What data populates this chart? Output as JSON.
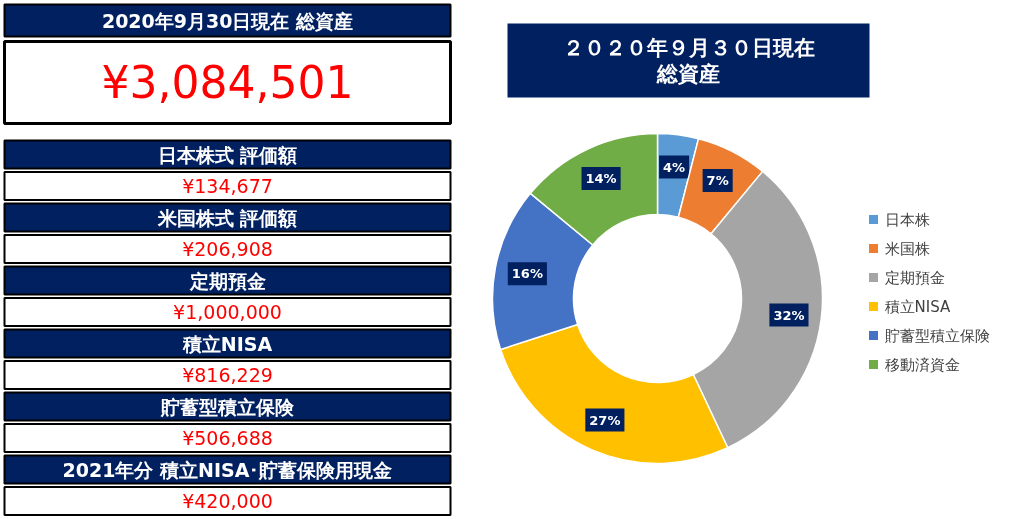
{
  "chart_data": [
    {
      "type": "other",
      "title": "2020年9月30日現在 総資産",
      "annotations": [
        "¥3,084,501",
        "日本株式 評価額",
        "¥134,677",
        "米国株式 評価額",
        "¥206,908",
        "定期預金",
        "¥1,000,000",
        "積立NISA",
        "¥816,229",
        "貯蓄型積立保険",
        "¥506,688",
        "2021年分 積立NISA･貯蓄保険用現金",
        "¥420,000"
      ]
    },
    {
      "type": "donut",
      "title": "２０２０年９月３０日現在総資産",
      "categories": [
        "日本株",
        "米国株",
        "定期預金",
        "積立NISA",
        "貯蓄型積立保険",
        "移動済資金"
      ],
      "values": [
        4,
        7,
        32,
        27,
        16,
        14
      ],
      "colors": [
        "#5b9bd5",
        "#ed7d31",
        "#a5a5a5",
        "#ffc000",
        "#4472c4",
        "#70ad47"
      ],
      "value_labels": [
        "4%",
        "7%",
        "32%",
        "27%",
        "16%",
        "14%"
      ],
      "legend": "right"
    }
  ]
}
